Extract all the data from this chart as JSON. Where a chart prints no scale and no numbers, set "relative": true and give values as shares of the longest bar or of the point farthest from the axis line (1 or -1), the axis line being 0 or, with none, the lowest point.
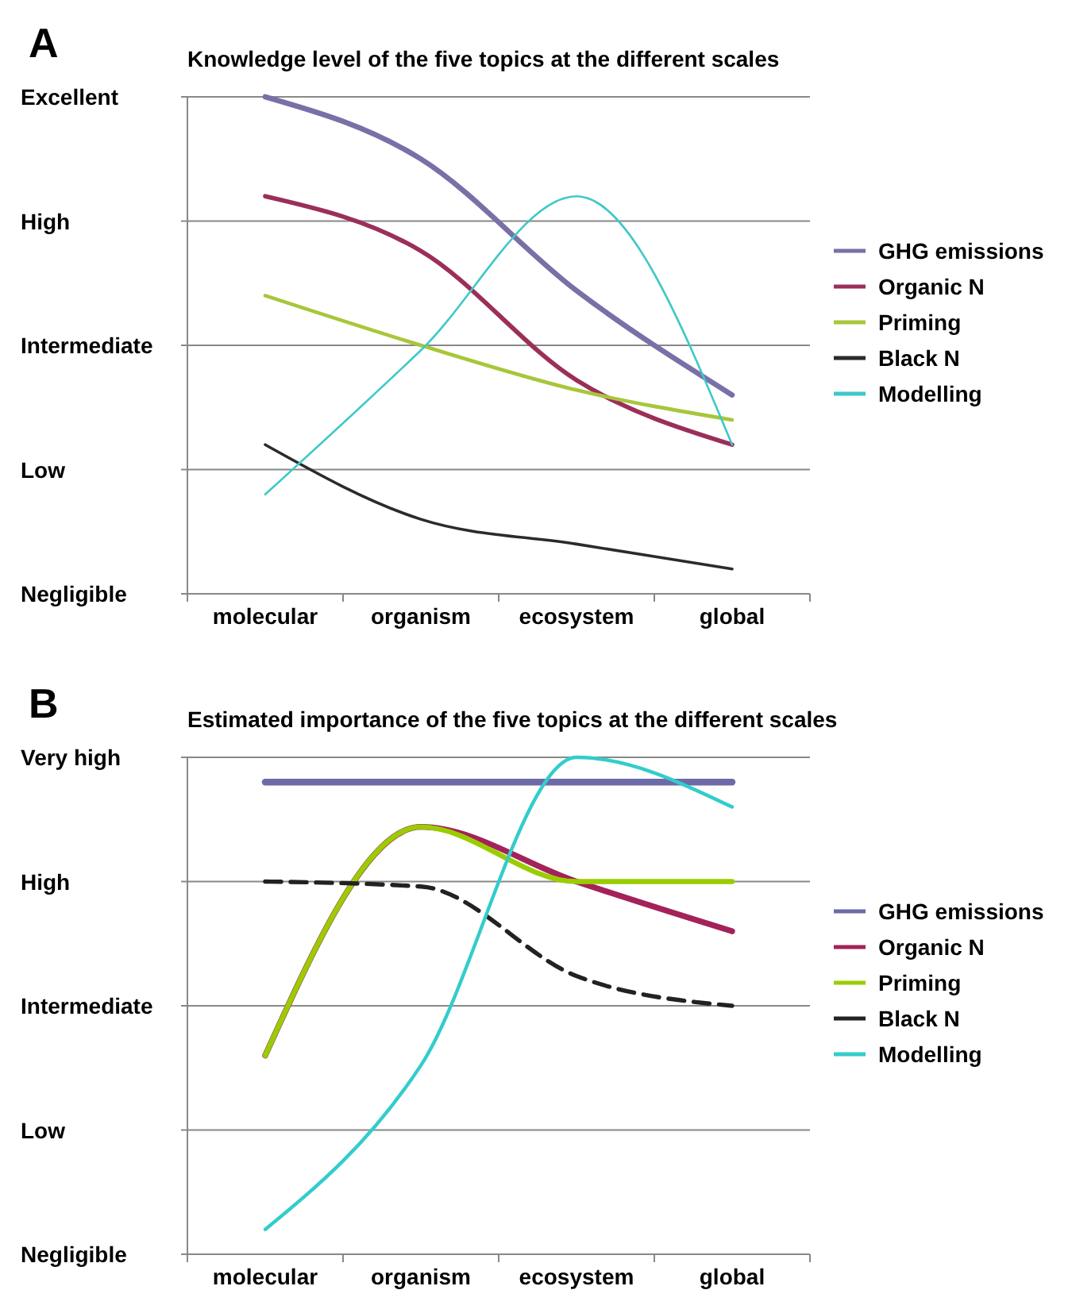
{
  "chart_data": [
    {
      "type": "line",
      "title": "Knowledge level of the five topics at the different scales",
      "annotations": [
        "A"
      ],
      "categories": [
        "molecular",
        "organism",
        "ecosystem",
        "global"
      ],
      "y_categories": [
        "Excellent",
        "High",
        "Intermediate",
        "Low",
        "Negligible"
      ],
      "relative": true,
      "grid": "y",
      "legend": "right",
      "line_style": "solid",
      "series": [
        {
          "name": "GHG emissions",
          "color": "#7b6fa8",
          "values": [
            1.0,
            0.875,
            0.61,
            0.4
          ]
        },
        {
          "name": "Organic N",
          "color": "#9b2f5a",
          "values": [
            0.8,
            0.69,
            0.43,
            0.3
          ]
        },
        {
          "name": "Priming",
          "color": "#a8c63b",
          "values": [
            0.6,
            0.5,
            0.41,
            0.35
          ]
        },
        {
          "name": "Black N",
          "color": "#2b2b2b",
          "values": [
            0.3,
            0.15,
            0.1,
            0.05
          ]
        },
        {
          "name": "Modelling",
          "color": "#3fc8c8",
          "values": [
            0.2,
            0.49,
            0.8,
            0.3
          ]
        }
      ]
    },
    {
      "type": "line",
      "title": "Estimated importance of the five topics at the different scales",
      "annotations": [
        "B"
      ],
      "categories": [
        "molecular",
        "organism",
        "ecosystem",
        "global"
      ],
      "y_categories": [
        "Very high",
        "High",
        "Intermediate",
        "Low",
        "Negligible"
      ],
      "relative": true,
      "grid": "y",
      "legend": "right",
      "line_style": "solid",
      "series": [
        {
          "name": "GHG emissions",
          "color": "#6c6aa8",
          "values": [
            0.95,
            0.95,
            0.95,
            0.95
          ]
        },
        {
          "name": "Organic N",
          "color": "#a3225a",
          "values": [
            0.4,
            0.86,
            0.75,
            0.65
          ]
        },
        {
          "name": "Priming",
          "color": "#9acd00",
          "values": [
            0.4,
            0.86,
            0.75,
            0.75
          ]
        },
        {
          "name": "Black N",
          "color": "#222222",
          "values": [
            0.75,
            0.74,
            0.56,
            0.5
          ],
          "line_style": "dashed"
        },
        {
          "name": "Modelling",
          "color": "#33cccc",
          "values": [
            0.05,
            0.38,
            1.0,
            0.9
          ]
        }
      ]
    }
  ]
}
